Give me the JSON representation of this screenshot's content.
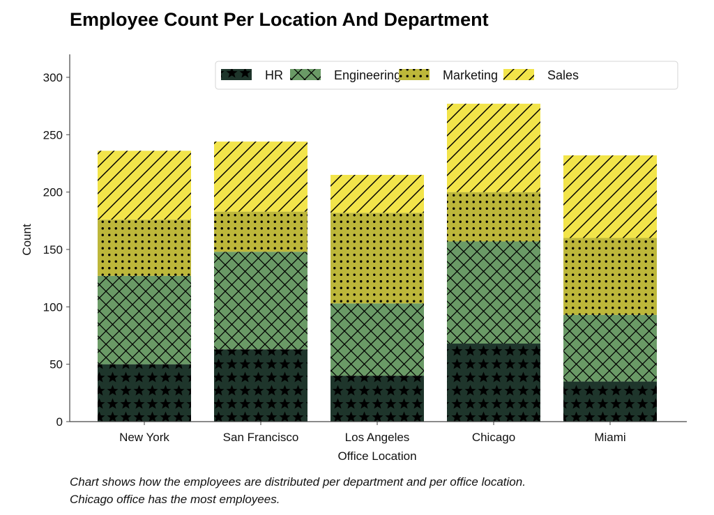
{
  "chart_data": {
    "type": "bar",
    "stacked": true,
    "title": "Employee Count Per Location And Department",
    "xlabel": "Office Location",
    "ylabel": "Count",
    "categories": [
      "New York",
      "San Francisco",
      "Los Angeles",
      "Chicago",
      "Miami"
    ],
    "series": [
      {
        "name": "HR",
        "values": [
          50,
          63,
          40,
          68,
          35
        ],
        "color": "#1e352b",
        "hatch": "stars"
      },
      {
        "name": "Engineering",
        "values": [
          77,
          85,
          63,
          89,
          58
        ],
        "color": "#6a9a66",
        "hatch": "crosshatch"
      },
      {
        "name": "Marketing",
        "values": [
          49,
          35,
          79,
          43,
          67
        ],
        "color": "#bdb73a",
        "hatch": "dots"
      },
      {
        "name": "Sales",
        "values": [
          60,
          61,
          33,
          77,
          72
        ],
        "color": "#f2e44a",
        "hatch": "diagonal"
      }
    ],
    "ylim": [
      0,
      320
    ],
    "yticks": [
      0,
      50,
      100,
      150,
      200,
      250,
      300
    ],
    "grid": false,
    "legend": {
      "placement": "top-right",
      "orientation": "horizontal"
    },
    "caption_lines": [
      "Chart shows how the employees are distributed per department and per office location.",
      "Chicago office has the most employees."
    ]
  }
}
